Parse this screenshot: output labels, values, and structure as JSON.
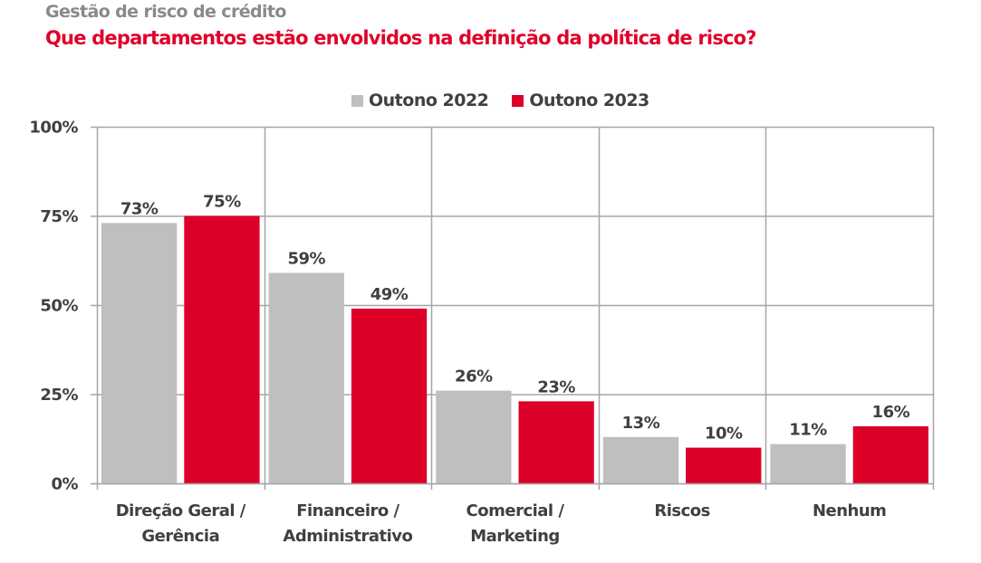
{
  "header": {
    "kicker": "Gestão de risco de crédito",
    "title": "Que departamentos estão envolvidos na definição da política de risco?"
  },
  "colors": {
    "series_2022": "#bfbfbf",
    "series_2023": "#dc0028",
    "grid": "#a6a6a6",
    "text": "#404040",
    "title": "#e0002a",
    "kicker": "#8a8a8a"
  },
  "chart_data": {
    "type": "bar",
    "title": "Que departamentos estão envolvidos na definição da política de risco?",
    "subtitle": "Gestão de risco de crédito",
    "xlabel": "",
    "ylabel": "",
    "ylim": [
      0,
      100
    ],
    "yticks": [
      0,
      25,
      50,
      75,
      100
    ],
    "ytick_labels": [
      "0%",
      "25%",
      "50%",
      "75%",
      "100%"
    ],
    "grid": true,
    "legend_position": "top-center",
    "categories": [
      [
        "Direção Geral /",
        "Gerência"
      ],
      [
        "Financeiro /",
        "Administrativo"
      ],
      [
        "Comercial /",
        "Marketing"
      ],
      [
        "Riscos"
      ],
      [
        "Nenhum"
      ]
    ],
    "series": [
      {
        "name": "Outono 2022",
        "values": [
          73,
          59,
          26,
          13,
          11
        ],
        "labels": [
          "73%",
          "59%",
          "26%",
          "13%",
          "11%"
        ]
      },
      {
        "name": "Outono 2023",
        "values": [
          75,
          49,
          23,
          10,
          16
        ],
        "labels": [
          "75%",
          "49%",
          "23%",
          "10%",
          "16%"
        ]
      }
    ]
  }
}
